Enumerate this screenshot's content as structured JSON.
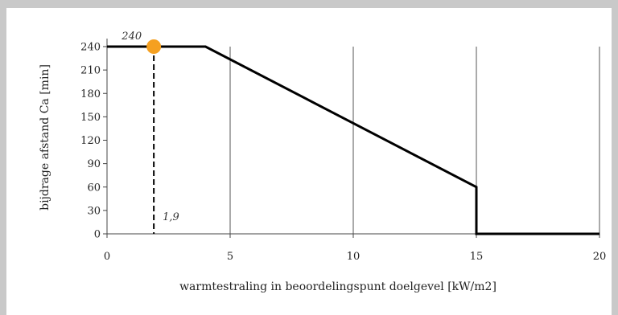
{
  "chart_data": {
    "type": "line",
    "title": "",
    "xlabel": "warmtestraling in beoordelingspunt doelgevel [kW/m2]",
    "ylabel": "bijdrage afstand Ca [min]",
    "xlim": [
      0,
      20
    ],
    "ylim": [
      0,
      240
    ],
    "xticks": [
      0,
      5,
      10,
      15,
      20
    ],
    "yticks": [
      0,
      30,
      60,
      90,
      120,
      150,
      180,
      210,
      240
    ],
    "grid": "vertical lines at x ticks",
    "series": [
      {
        "color": "#000000",
        "points": [
          [
            0,
            240
          ],
          [
            4,
            240
          ],
          [
            15,
            60
          ],
          [
            15,
            0
          ],
          [
            20,
            0
          ]
        ]
      }
    ],
    "marker": {
      "x": 1.9,
      "y": 240,
      "color": "#f5a020"
    },
    "annotations": [
      {
        "text": "240",
        "at": "marker value"
      },
      {
        "text": "1,9",
        "at": "marker x value"
      }
    ]
  }
}
